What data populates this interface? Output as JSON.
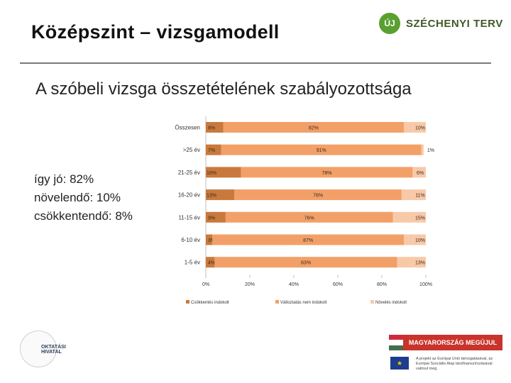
{
  "header": {
    "title": "Középszint – vizsgamodell",
    "subtitle": "A szóbeli vizsga összetételének szabályozottsága",
    "logo_text": "SZÉCHENYI TERV",
    "logo_mark": "ÚJ"
  },
  "left_stats": {
    "line1": "így jó: 82%",
    "line2": "növelendő: 10%",
    "line3": "csökkentendő: 8%"
  },
  "chart_data": {
    "type": "bar",
    "orientation": "horizontal",
    "stacked": true,
    "categories": [
      "Összesen",
      ">25 év",
      "21-25 év",
      "16-20 év",
      "11-15 év",
      "6-10 év",
      "1-5 év"
    ],
    "series": [
      {
        "name": "Csökkentés indokolt",
        "color": "#c9793c",
        "values": [
          8,
          7,
          16,
          13,
          9,
          3,
          4
        ],
        "labels": [
          "8%",
          "7%",
          "16%",
          "13%",
          "9%",
          "3%",
          "4%"
        ]
      },
      {
        "name": "Változtatás nem indokolt",
        "color": "#f2a068",
        "values": [
          82,
          91,
          78,
          76,
          76,
          87,
          83
        ],
        "labels": [
          "82%",
          "91%",
          "78%",
          "76%",
          "76%",
          "87%",
          "83%"
        ]
      },
      {
        "name": "Növelés indokolt",
        "color": "#f8c9a8",
        "values": [
          10,
          1,
          6,
          11,
          15,
          10,
          13
        ],
        "labels": [
          "10%",
          "1%",
          "6%",
          "11%",
          "15%",
          "10%",
          "13%"
        ]
      }
    ],
    "xlim": [
      0,
      100
    ],
    "xticks": [
      "0%",
      "20%",
      "40%",
      "60%",
      "80%",
      "100%"
    ],
    "legend_position": "bottom"
  },
  "footer": {
    "office_text": "OKTATÁSI HIVATAL",
    "banner_text": "MAGYARORSZÁG MEGÚJUL",
    "eu_note": "A projekt az Európai Unió támogatásával, az Európai Szociális Alap társfinanszírozásával valósul meg.",
    "flag_colors": [
      "#cd2a3e",
      "#ffffff",
      "#436f4d"
    ]
  }
}
